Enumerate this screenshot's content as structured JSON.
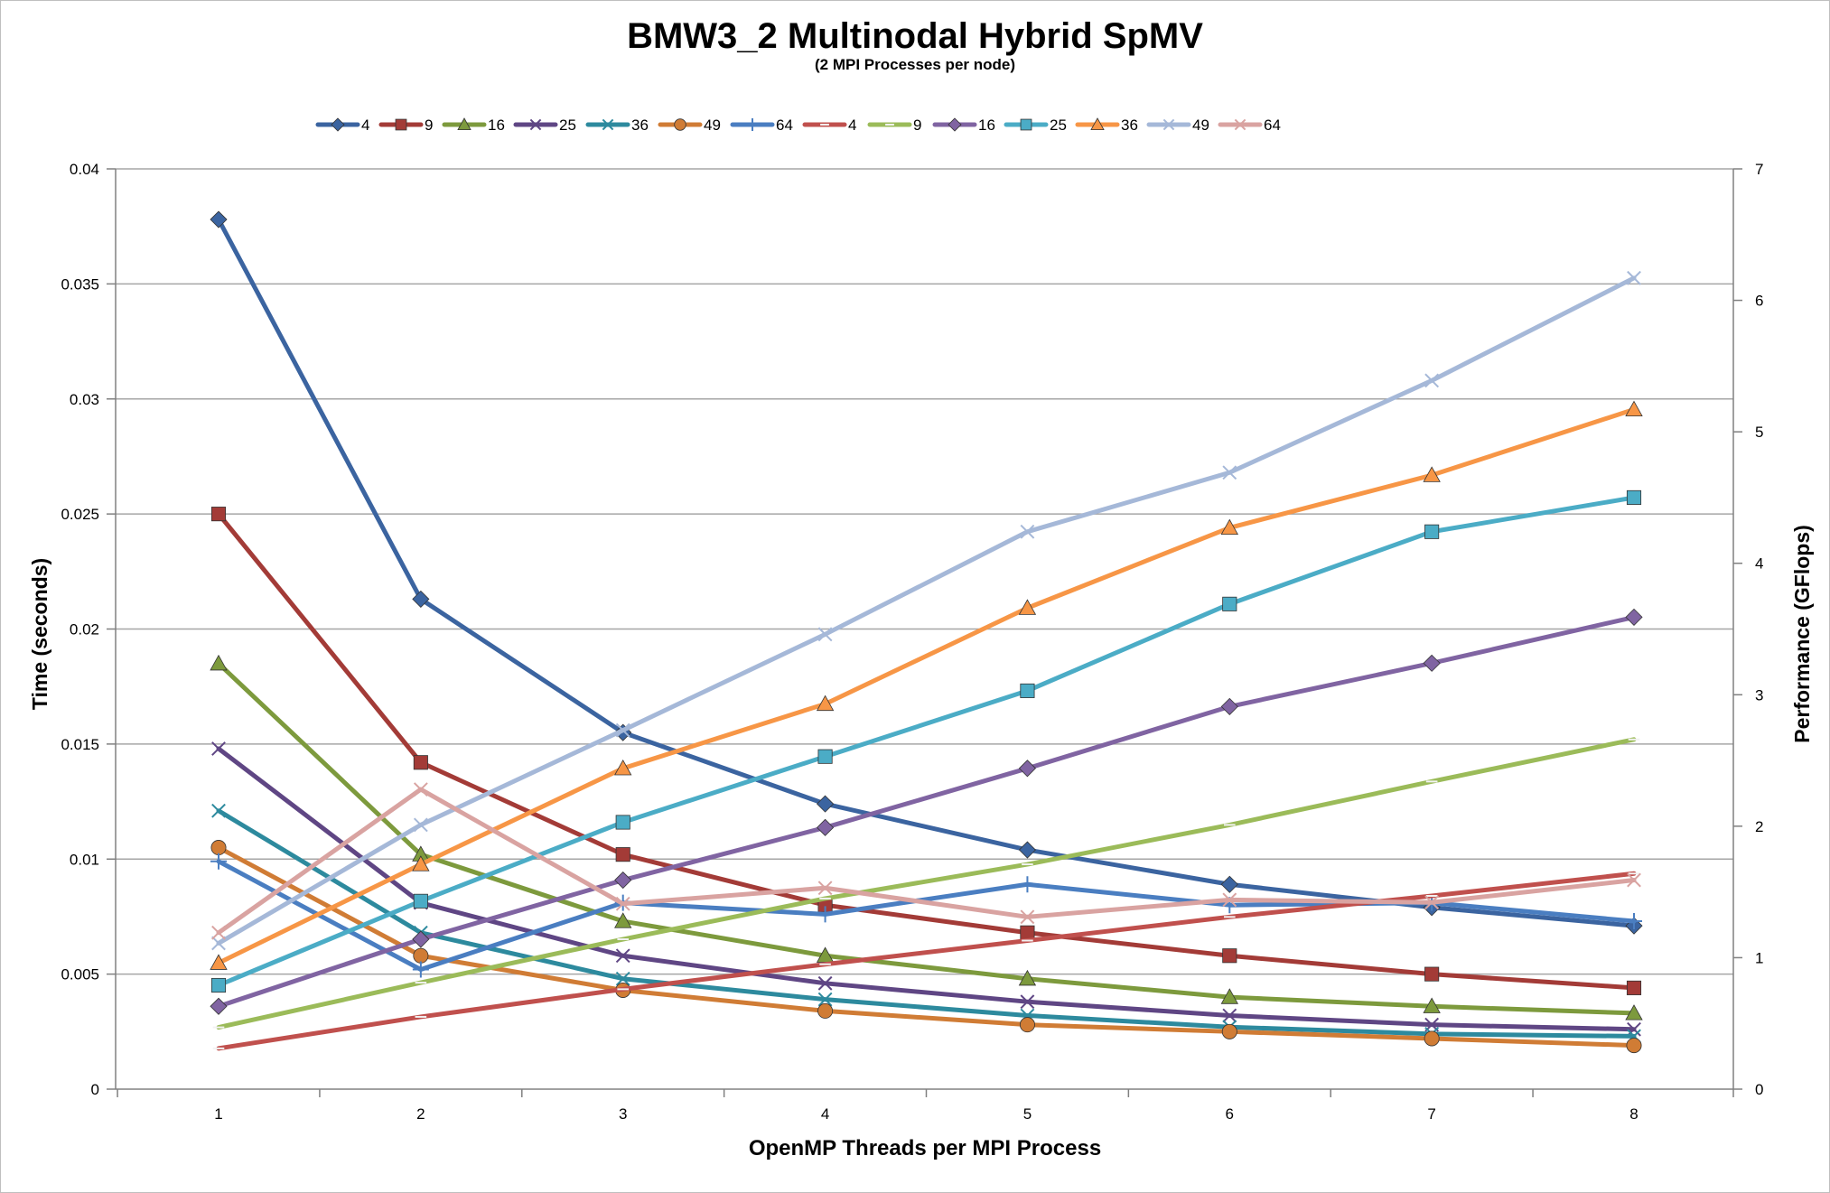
{
  "chart_data": {
    "type": "line",
    "title": "BMW3_2 Multinodal Hybrid SpMV",
    "subtitle": "(2 MPI Processes per node)",
    "xlabel": "OpenMP Threads per MPI Process",
    "ylabel": "Time (seconds)",
    "y2label": "Performance (GFlops)",
    "x": [
      1,
      2,
      3,
      4,
      5,
      6,
      7,
      8
    ],
    "x_ticks": [
      "1",
      "2",
      "3",
      "4",
      "5",
      "6",
      "7",
      "8"
    ],
    "ylim": [
      0,
      0.04
    ],
    "y_ticks": [
      "0",
      "0.005",
      "0.01",
      "0.015",
      "0.02",
      "0.025",
      "0.03",
      "0.035",
      "0.04"
    ],
    "y2lim": [
      0,
      7
    ],
    "y2_ticks": [
      "0",
      "1",
      "2",
      "3",
      "4",
      "5",
      "6",
      "7"
    ],
    "grid": "horizontal",
    "legend_position": "top",
    "series": [
      {
        "name": "4",
        "axis": "left",
        "color": "#3b64a0",
        "marker": "diamond",
        "values": [
          0.0378,
          0.0213,
          0.0155,
          0.0124,
          0.0104,
          0.0089,
          0.0079,
          0.0071
        ]
      },
      {
        "name": "9",
        "axis": "left",
        "color": "#a33b37",
        "marker": "square",
        "values": [
          0.025,
          0.0142,
          0.0102,
          0.008,
          0.0068,
          0.0058,
          0.005,
          0.0044
        ]
      },
      {
        "name": "16",
        "axis": "left",
        "color": "#7d9a3d",
        "marker": "triangle",
        "values": [
          0.0185,
          0.0102,
          0.0073,
          0.0058,
          0.0048,
          0.004,
          0.0036,
          0.0033
        ]
      },
      {
        "name": "25",
        "axis": "left",
        "color": "#5f4684",
        "marker": "x",
        "values": [
          0.0148,
          0.0081,
          0.0058,
          0.0046,
          0.0038,
          0.0032,
          0.0028,
          0.0026
        ]
      },
      {
        "name": "36",
        "axis": "left",
        "color": "#2d8a9e",
        "marker": "x",
        "values": [
          0.0121,
          0.0068,
          0.0048,
          0.0039,
          0.0032,
          0.0027,
          0.0024,
          0.0023
        ]
      },
      {
        "name": "49",
        "axis": "left",
        "color": "#d07c35",
        "marker": "circle",
        "values": [
          0.0105,
          0.0058,
          0.0043,
          0.0034,
          0.0028,
          0.0025,
          0.0022,
          0.0019
        ]
      },
      {
        "name": "64",
        "axis": "left",
        "color": "#4a7ec1",
        "marker": "plus",
        "values": [
          0.0099,
          0.0052,
          0.0081,
          0.0076,
          0.0089,
          0.008,
          0.0081,
          0.0073
        ]
      },
      {
        "name": "4",
        "axis": "right",
        "color": "#c0504d",
        "marker": "dash",
        "values": [
          0.31,
          0.55,
          0.76,
          0.95,
          1.13,
          1.31,
          1.47,
          1.64
        ]
      },
      {
        "name": "9",
        "axis": "right",
        "color": "#9bbb59",
        "marker": "dash",
        "values": [
          0.47,
          0.81,
          1.14,
          1.45,
          1.71,
          2.01,
          2.34,
          2.66
        ]
      },
      {
        "name": "16",
        "axis": "right",
        "color": "#8064a2",
        "marker": "diamond",
        "values": [
          0.63,
          1.14,
          1.59,
          1.99,
          2.44,
          2.91,
          3.24,
          3.59
        ]
      },
      {
        "name": "25",
        "axis": "right",
        "color": "#4bacc6",
        "marker": "square",
        "values": [
          0.79,
          1.43,
          2.03,
          2.53,
          3.03,
          3.69,
          4.24,
          4.5
        ]
      },
      {
        "name": "36",
        "axis": "right",
        "color": "#f79646",
        "marker": "triangle",
        "values": [
          0.96,
          1.71,
          2.44,
          2.93,
          3.66,
          4.27,
          4.67,
          5.17
        ]
      },
      {
        "name": "49",
        "axis": "right",
        "color": "#a5b8d8",
        "marker": "x",
        "values": [
          1.11,
          2.01,
          2.73,
          3.46,
          4.24,
          4.69,
          5.39,
          6.17
        ]
      },
      {
        "name": "64",
        "axis": "right",
        "color": "#d9a3a1",
        "marker": "x",
        "values": [
          1.19,
          2.28,
          1.41,
          1.53,
          1.31,
          1.44,
          1.42,
          1.59
        ]
      }
    ]
  }
}
